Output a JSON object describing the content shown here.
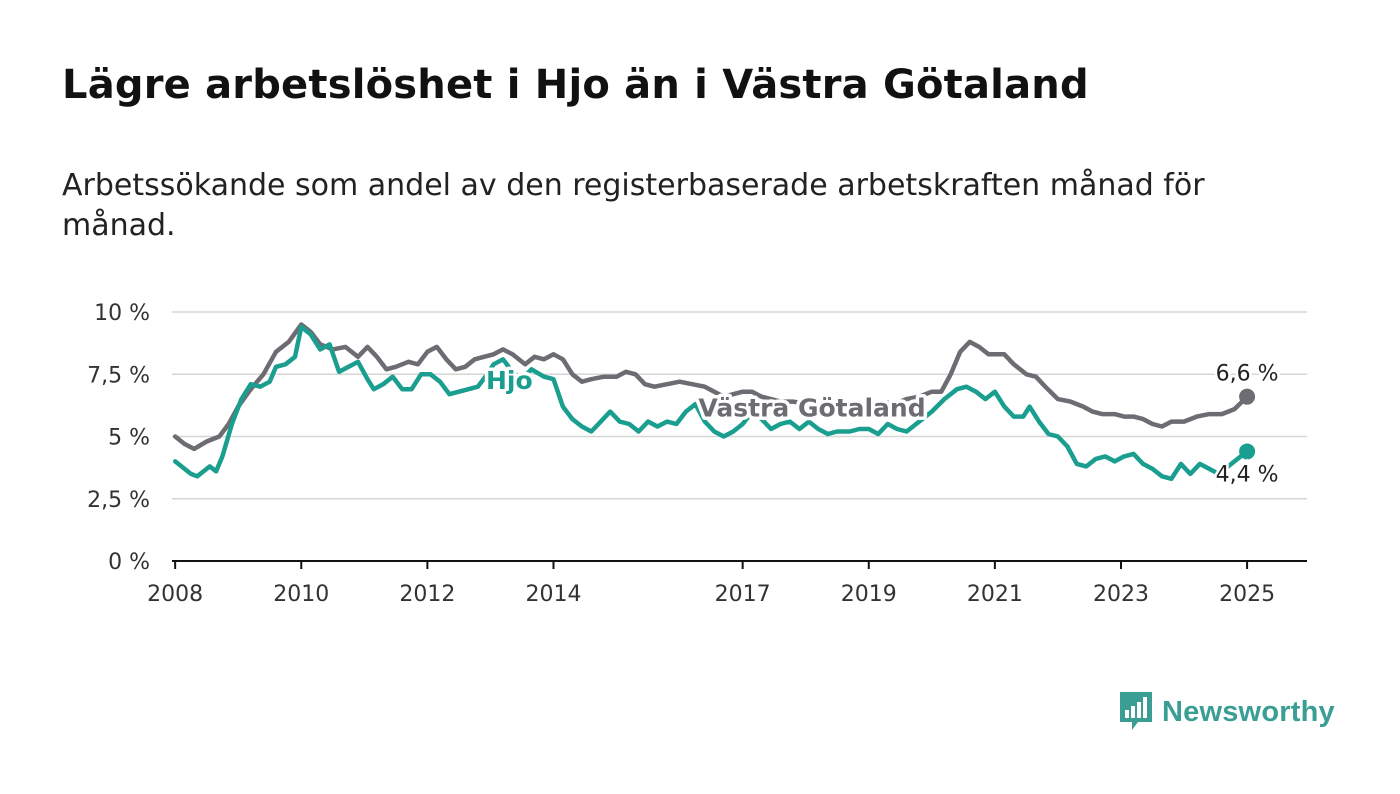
{
  "title": "Lägre arbetslöshet i Hjo än i Västra Götaland",
  "subtitle": "Arbetssökande som andel av den registerbaserade arbetskraften månad för månad.",
  "brand": {
    "name": "Newsworthy",
    "icon": "bar-chart-speech-bubble-icon",
    "color": "#3a9e95"
  },
  "chart_data": {
    "type": "line",
    "ylim": [
      0,
      10
    ],
    "y_ticks": [
      {
        "value": 0,
        "label": "0 %"
      },
      {
        "value": 2.5,
        "label": "2,5 %"
      },
      {
        "value": 5,
        "label": "5 %"
      },
      {
        "value": 7.5,
        "label": "7,5 %"
      },
      {
        "value": 10,
        "label": "10 %"
      }
    ],
    "xlim": [
      2007.95,
      2025.95
    ],
    "x_ticks": [
      {
        "value": 2008.0,
        "label": "2008"
      },
      {
        "value": 2010.0,
        "label": "2010"
      },
      {
        "value": 2012.0,
        "label": "2012"
      },
      {
        "value": 2014.0,
        "label": "2014"
      },
      {
        "value": 2017.0,
        "label": "2017"
      },
      {
        "value": 2019.0,
        "label": "2019"
      },
      {
        "value": 2021.0,
        "label": "2021"
      },
      {
        "value": 2023.0,
        "label": "2023"
      },
      {
        "value": 2025.0,
        "label": "2025"
      }
    ],
    "grid": true,
    "series": [
      {
        "name": "Västra Götaland",
        "color": "#6e6b72",
        "end_label": "6,6 %",
        "points": [
          [
            2008.0,
            5.0
          ],
          [
            2008.15,
            4.7
          ],
          [
            2008.3,
            4.5
          ],
          [
            2008.5,
            4.8
          ],
          [
            2008.7,
            5.0
          ],
          [
            2008.85,
            5.5
          ],
          [
            2009.0,
            6.2
          ],
          [
            2009.2,
            6.9
          ],
          [
            2009.4,
            7.5
          ],
          [
            2009.6,
            8.4
          ],
          [
            2009.8,
            8.8
          ],
          [
            2010.0,
            9.5
          ],
          [
            2010.15,
            9.2
          ],
          [
            2010.3,
            8.7
          ],
          [
            2010.5,
            8.5
          ],
          [
            2010.7,
            8.6
          ],
          [
            2010.9,
            8.2
          ],
          [
            2011.05,
            8.6
          ],
          [
            2011.2,
            8.2
          ],
          [
            2011.35,
            7.7
          ],
          [
            2011.5,
            7.8
          ],
          [
            2011.7,
            8.0
          ],
          [
            2011.85,
            7.9
          ],
          [
            2012.0,
            8.4
          ],
          [
            2012.15,
            8.6
          ],
          [
            2012.3,
            8.1
          ],
          [
            2012.45,
            7.7
          ],
          [
            2012.6,
            7.8
          ],
          [
            2012.75,
            8.1
          ],
          [
            2012.9,
            8.2
          ],
          [
            2013.05,
            8.3
          ],
          [
            2013.2,
            8.5
          ],
          [
            2013.35,
            8.3
          ],
          [
            2013.55,
            7.9
          ],
          [
            2013.7,
            8.2
          ],
          [
            2013.85,
            8.1
          ],
          [
            2014.0,
            8.3
          ],
          [
            2014.15,
            8.1
          ],
          [
            2014.3,
            7.5
          ],
          [
            2014.45,
            7.2
          ],
          [
            2014.6,
            7.3
          ],
          [
            2014.8,
            7.4
          ],
          [
            2015.0,
            7.4
          ],
          [
            2015.15,
            7.6
          ],
          [
            2015.3,
            7.5
          ],
          [
            2015.45,
            7.1
          ],
          [
            2015.6,
            7.0
          ],
          [
            2015.8,
            7.1
          ],
          [
            2016.0,
            7.2
          ],
          [
            2016.2,
            7.1
          ],
          [
            2016.4,
            7.0
          ],
          [
            2016.55,
            6.8
          ],
          [
            2016.7,
            6.6
          ],
          [
            2016.85,
            6.7
          ],
          [
            2017.0,
            6.8
          ],
          [
            2017.15,
            6.8
          ],
          [
            2017.3,
            6.6
          ],
          [
            2017.45,
            6.5
          ],
          [
            2017.6,
            6.4
          ],
          [
            2017.8,
            6.4
          ],
          [
            2018.0,
            6.3
          ],
          [
            2018.2,
            6.2
          ],
          [
            2018.4,
            6.3
          ],
          [
            2018.6,
            6.2
          ],
          [
            2018.8,
            6.2
          ],
          [
            2019.0,
            6.3
          ],
          [
            2019.2,
            6.4
          ],
          [
            2019.4,
            6.3
          ],
          [
            2019.6,
            6.5
          ],
          [
            2019.8,
            6.6
          ],
          [
            2020.0,
            6.8
          ],
          [
            2020.15,
            6.8
          ],
          [
            2020.3,
            7.5
          ],
          [
            2020.45,
            8.4
          ],
          [
            2020.6,
            8.8
          ],
          [
            2020.75,
            8.6
          ],
          [
            2020.9,
            8.3
          ],
          [
            2021.0,
            8.3
          ],
          [
            2021.15,
            8.3
          ],
          [
            2021.3,
            7.9
          ],
          [
            2021.5,
            7.5
          ],
          [
            2021.65,
            7.4
          ],
          [
            2021.8,
            7.0
          ],
          [
            2022.0,
            6.5
          ],
          [
            2022.2,
            6.4
          ],
          [
            2022.4,
            6.2
          ],
          [
            2022.55,
            6.0
          ],
          [
            2022.7,
            5.9
          ],
          [
            2022.9,
            5.9
          ],
          [
            2023.05,
            5.8
          ],
          [
            2023.2,
            5.8
          ],
          [
            2023.35,
            5.7
          ],
          [
            2023.5,
            5.5
          ],
          [
            2023.65,
            5.4
          ],
          [
            2023.8,
            5.6
          ],
          [
            2024.0,
            5.6
          ],
          [
            2024.2,
            5.8
          ],
          [
            2024.4,
            5.9
          ],
          [
            2024.6,
            5.9
          ],
          [
            2024.8,
            6.1
          ],
          [
            2025.0,
            6.6
          ]
        ]
      },
      {
        "name": "Hjo",
        "color": "#1a9e8f",
        "end_label": "4,4 %",
        "points": [
          [
            2008.0,
            4.0
          ],
          [
            2008.1,
            3.8
          ],
          [
            2008.25,
            3.5
          ],
          [
            2008.35,
            3.4
          ],
          [
            2008.45,
            3.6
          ],
          [
            2008.55,
            3.8
          ],
          [
            2008.65,
            3.6
          ],
          [
            2008.75,
            4.2
          ],
          [
            2008.9,
            5.5
          ],
          [
            2009.05,
            6.5
          ],
          [
            2009.2,
            7.1
          ],
          [
            2009.35,
            7.0
          ],
          [
            2009.5,
            7.2
          ],
          [
            2009.6,
            7.8
          ],
          [
            2009.75,
            7.9
          ],
          [
            2009.9,
            8.2
          ],
          [
            2010.0,
            9.4
          ],
          [
            2010.15,
            9.1
          ],
          [
            2010.3,
            8.5
          ],
          [
            2010.45,
            8.7
          ],
          [
            2010.6,
            7.6
          ],
          [
            2010.75,
            7.8
          ],
          [
            2010.9,
            8.0
          ],
          [
            2011.05,
            7.3
          ],
          [
            2011.15,
            6.9
          ],
          [
            2011.3,
            7.1
          ],
          [
            2011.45,
            7.4
          ],
          [
            2011.6,
            6.9
          ],
          [
            2011.75,
            6.9
          ],
          [
            2011.9,
            7.5
          ],
          [
            2012.05,
            7.5
          ],
          [
            2012.2,
            7.2
          ],
          [
            2012.35,
            6.7
          ],
          [
            2012.5,
            6.8
          ],
          [
            2012.65,
            6.9
          ],
          [
            2012.8,
            7.0
          ],
          [
            2012.95,
            7.5
          ],
          [
            2013.05,
            7.9
          ],
          [
            2013.2,
            8.1
          ],
          [
            2013.35,
            7.6
          ],
          [
            2013.5,
            7.3
          ],
          [
            2013.65,
            7.7
          ],
          [
            2013.85,
            7.4
          ],
          [
            2014.0,
            7.3
          ],
          [
            2014.15,
            6.2
          ],
          [
            2014.3,
            5.7
          ],
          [
            2014.45,
            5.4
          ],
          [
            2014.6,
            5.2
          ],
          [
            2014.75,
            5.6
          ],
          [
            2014.9,
            6.0
          ],
          [
            2015.05,
            5.6
          ],
          [
            2015.2,
            5.5
          ],
          [
            2015.35,
            5.2
          ],
          [
            2015.5,
            5.6
          ],
          [
            2015.65,
            5.4
          ],
          [
            2015.8,
            5.6
          ],
          [
            2015.95,
            5.5
          ],
          [
            2016.1,
            6.0
          ],
          [
            2016.25,
            6.3
          ],
          [
            2016.4,
            5.6
          ],
          [
            2016.55,
            5.2
          ],
          [
            2016.7,
            5.0
          ],
          [
            2016.85,
            5.2
          ],
          [
            2017.0,
            5.5
          ],
          [
            2017.15,
            6.0
          ],
          [
            2017.3,
            5.7
          ],
          [
            2017.45,
            5.3
          ],
          [
            2017.6,
            5.5
          ],
          [
            2017.75,
            5.6
          ],
          [
            2017.9,
            5.3
          ],
          [
            2018.05,
            5.6
          ],
          [
            2018.2,
            5.3
          ],
          [
            2018.35,
            5.1
          ],
          [
            2018.5,
            5.2
          ],
          [
            2018.7,
            5.2
          ],
          [
            2018.85,
            5.3
          ],
          [
            2019.0,
            5.3
          ],
          [
            2019.15,
            5.1
          ],
          [
            2019.3,
            5.5
          ],
          [
            2019.45,
            5.3
          ],
          [
            2019.6,
            5.2
          ],
          [
            2019.8,
            5.6
          ],
          [
            2020.0,
            6.0
          ],
          [
            2020.2,
            6.5
          ],
          [
            2020.4,
            6.9
          ],
          [
            2020.55,
            7.0
          ],
          [
            2020.7,
            6.8
          ],
          [
            2020.85,
            6.5
          ],
          [
            2021.0,
            6.8
          ],
          [
            2021.15,
            6.2
          ],
          [
            2021.3,
            5.8
          ],
          [
            2021.45,
            5.8
          ],
          [
            2021.55,
            6.2
          ],
          [
            2021.7,
            5.6
          ],
          [
            2021.85,
            5.1
          ],
          [
            2022.0,
            5.0
          ],
          [
            2022.15,
            4.6
          ],
          [
            2022.3,
            3.9
          ],
          [
            2022.45,
            3.8
          ],
          [
            2022.6,
            4.1
          ],
          [
            2022.75,
            4.2
          ],
          [
            2022.9,
            4.0
          ],
          [
            2023.05,
            4.2
          ],
          [
            2023.2,
            4.3
          ],
          [
            2023.35,
            3.9
          ],
          [
            2023.5,
            3.7
          ],
          [
            2023.65,
            3.4
          ],
          [
            2023.8,
            3.3
          ],
          [
            2023.95,
            3.9
          ],
          [
            2024.1,
            3.5
          ],
          [
            2024.25,
            3.9
          ],
          [
            2024.4,
            3.7
          ],
          [
            2024.55,
            3.5
          ],
          [
            2024.7,
            3.8
          ],
          [
            2024.85,
            4.1
          ],
          [
            2025.0,
            4.4
          ]
        ]
      }
    ]
  }
}
